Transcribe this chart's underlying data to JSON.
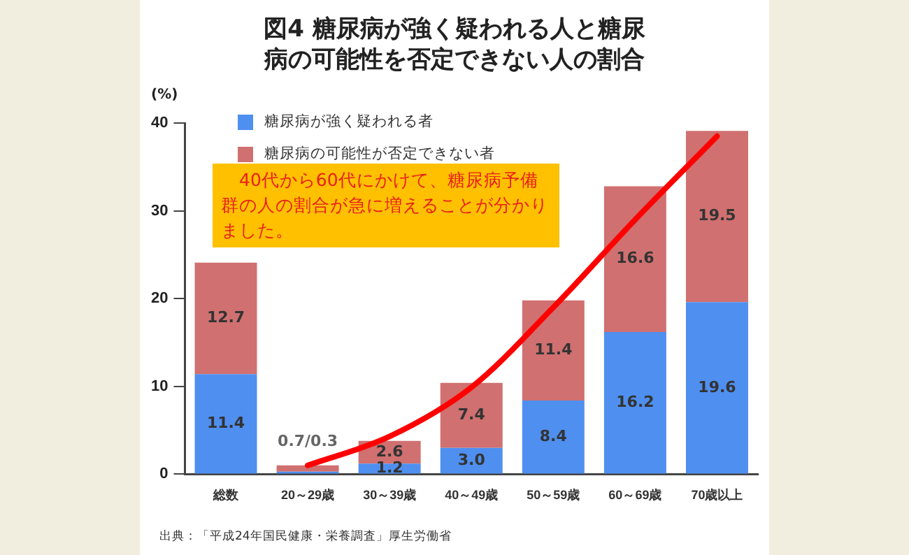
{
  "chart_data": {
    "type": "bar",
    "title": "図4 糖尿病が強く疑われる人と糖尿病の可能性を否定できない人の割合",
    "ylabel": "(%)",
    "categories": [
      "総数",
      "20～29歳",
      "30～39歳",
      "40～49歳",
      "50～59歳",
      "60～69歳",
      "70歳以上"
    ],
    "stacked": true,
    "series": [
      {
        "name": "糖尿病が強く疑われる者",
        "color": "#4f8ff0",
        "values": [
          11.4,
          0.3,
          1.2,
          3.0,
          8.4,
          16.2,
          19.6
        ],
        "value_labels": [
          "11.4",
          null,
          "1.2",
          "3.0",
          "8.4",
          "16.2",
          "19.6"
        ]
      },
      {
        "name": "糖尿病の可能性が否定できない者",
        "color": "#d07070",
        "values": [
          12.7,
          0.7,
          2.6,
          7.4,
          11.4,
          16.6,
          19.5
        ],
        "value_labels": [
          "12.7",
          null,
          "2.6",
          "7.4",
          "11.4",
          "16.6",
          "19.5"
        ]
      },
      {
        "type": "line",
        "color": "#ff0000",
        "x": [
          "20～29歳",
          "30～39歳",
          "40～49歳",
          "50～59歳",
          "60～69歳",
          "70歳以上"
        ],
        "values": [
          1.0,
          4.3,
          9.9,
          19,
          29,
          38.5
        ]
      }
    ],
    "ylim": [
      0,
      40
    ],
    "yticks": [
      0,
      10,
      20,
      30,
      40
    ],
    "grid": false,
    "legend": "top left",
    "annotations": [
      "　40代から60代にかけて、糖尿病予備群の人の割合が急に増えることが分かりました。",
      "出典：「平成24年国民健康・栄養調査」厚生労働省",
      {
        "text": "0.7/0.3",
        "x": "20～29歳",
        "y": 1.0
      }
    ]
  }
}
